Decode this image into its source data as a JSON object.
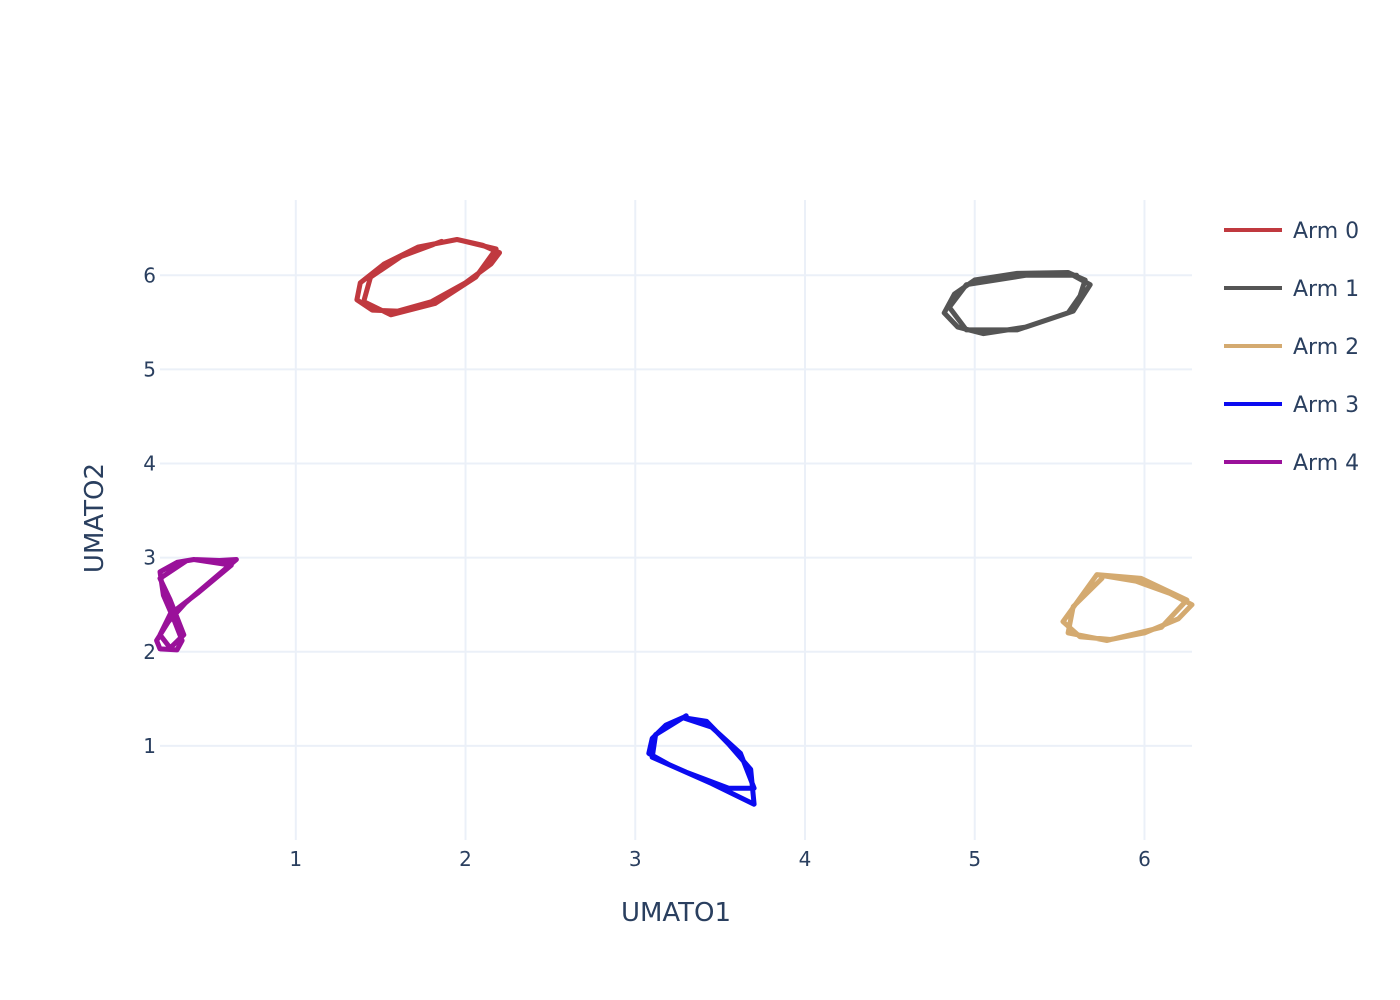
{
  "chart_data": {
    "type": "line",
    "title": "",
    "xlabel": "UMATO1",
    "ylabel": "UMATO2",
    "xlim": [
      0.2,
      6.28
    ],
    "ylim": [
      0.0,
      6.8
    ],
    "xticks": [
      1,
      2,
      3,
      4,
      5,
      6
    ],
    "yticks": [
      1,
      2,
      3,
      4,
      5,
      6
    ],
    "grid": true,
    "legend_position": "top-right",
    "series": [
      {
        "name": "Arm 0",
        "color": "#c0393f",
        "points": [
          [
            1.95,
            6.38
          ],
          [
            2.1,
            6.32
          ],
          [
            2.2,
            6.24
          ],
          [
            2.15,
            6.12
          ],
          [
            2.0,
            5.92
          ],
          [
            1.8,
            5.72
          ],
          [
            1.6,
            5.62
          ],
          [
            1.45,
            5.63
          ],
          [
            1.36,
            5.74
          ],
          [
            1.38,
            5.92
          ],
          [
            1.52,
            6.12
          ],
          [
            1.72,
            6.3
          ],
          [
            1.95,
            6.38
          ],
          [
            2.18,
            6.28
          ],
          [
            2.06,
            5.98
          ],
          [
            1.82,
            5.7
          ],
          [
            1.56,
            5.58
          ],
          [
            1.4,
            5.72
          ],
          [
            1.44,
            5.98
          ],
          [
            1.62,
            6.2
          ],
          [
            1.86,
            6.36
          ]
        ]
      },
      {
        "name": "Arm 1",
        "color": "#555555",
        "points": [
          [
            5.55,
            6.03
          ],
          [
            5.65,
            5.95
          ],
          [
            5.62,
            5.78
          ],
          [
            5.55,
            5.6
          ],
          [
            5.3,
            5.45
          ],
          [
            5.05,
            5.38
          ],
          [
            4.9,
            5.45
          ],
          [
            4.82,
            5.6
          ],
          [
            4.88,
            5.8
          ],
          [
            5.0,
            5.95
          ],
          [
            5.25,
            6.02
          ],
          [
            5.55,
            6.03
          ],
          [
            5.68,
            5.9
          ],
          [
            5.58,
            5.62
          ],
          [
            5.25,
            5.42
          ],
          [
            4.95,
            5.42
          ],
          [
            4.85,
            5.66
          ],
          [
            4.95,
            5.9
          ],
          [
            5.3,
            6.0
          ],
          [
            5.6,
            6.0
          ]
        ]
      },
      {
        "name": "Arm 2",
        "color": "#d4aa70",
        "points": [
          [
            5.72,
            2.82
          ],
          [
            5.95,
            2.75
          ],
          [
            6.15,
            2.62
          ],
          [
            6.28,
            2.5
          ],
          [
            6.2,
            2.35
          ],
          [
            6.0,
            2.2
          ],
          [
            5.8,
            2.13
          ],
          [
            5.62,
            2.16
          ],
          [
            5.52,
            2.32
          ],
          [
            5.6,
            2.52
          ],
          [
            5.72,
            2.82
          ],
          [
            5.98,
            2.78
          ],
          [
            6.25,
            2.55
          ],
          [
            6.1,
            2.26
          ],
          [
            5.78,
            2.12
          ],
          [
            5.55,
            2.2
          ],
          [
            5.58,
            2.48
          ],
          [
            5.75,
            2.78
          ]
        ]
      },
      {
        "name": "Arm 3",
        "color": "#0b0bf0",
        "points": [
          [
            3.28,
            1.3
          ],
          [
            3.42,
            1.26
          ],
          [
            3.55,
            1.02
          ],
          [
            3.68,
            0.75
          ],
          [
            3.7,
            0.38
          ],
          [
            3.45,
            0.6
          ],
          [
            3.2,
            0.8
          ],
          [
            3.08,
            0.92
          ],
          [
            3.1,
            1.08
          ],
          [
            3.18,
            1.22
          ],
          [
            3.28,
            1.3
          ],
          [
            3.45,
            1.2
          ],
          [
            3.62,
            0.92
          ],
          [
            3.7,
            0.55
          ],
          [
            3.55,
            0.55
          ],
          [
            3.3,
            0.72
          ],
          [
            3.1,
            0.88
          ],
          [
            3.12,
            1.12
          ],
          [
            3.3,
            1.32
          ]
        ]
      },
      {
        "name": "Arm 4",
        "color": "#9a119a",
        "points": [
          [
            0.4,
            2.98
          ],
          [
            0.55,
            2.97
          ],
          [
            0.65,
            2.98
          ],
          [
            0.5,
            2.75
          ],
          [
            0.35,
            2.52
          ],
          [
            0.25,
            2.32
          ],
          [
            0.18,
            2.12
          ],
          [
            0.2,
            2.03
          ],
          [
            0.3,
            2.02
          ],
          [
            0.33,
            2.12
          ],
          [
            0.28,
            2.35
          ],
          [
            0.22,
            2.6
          ],
          [
            0.2,
            2.85
          ],
          [
            0.3,
            2.95
          ],
          [
            0.4,
            2.98
          ],
          [
            0.62,
            2.92
          ],
          [
            0.42,
            2.62
          ],
          [
            0.26,
            2.4
          ],
          [
            0.2,
            2.18
          ],
          [
            0.26,
            2.04
          ],
          [
            0.34,
            2.18
          ],
          [
            0.26,
            2.55
          ],
          [
            0.2,
            2.78
          ],
          [
            0.35,
            2.96
          ]
        ]
      }
    ]
  }
}
